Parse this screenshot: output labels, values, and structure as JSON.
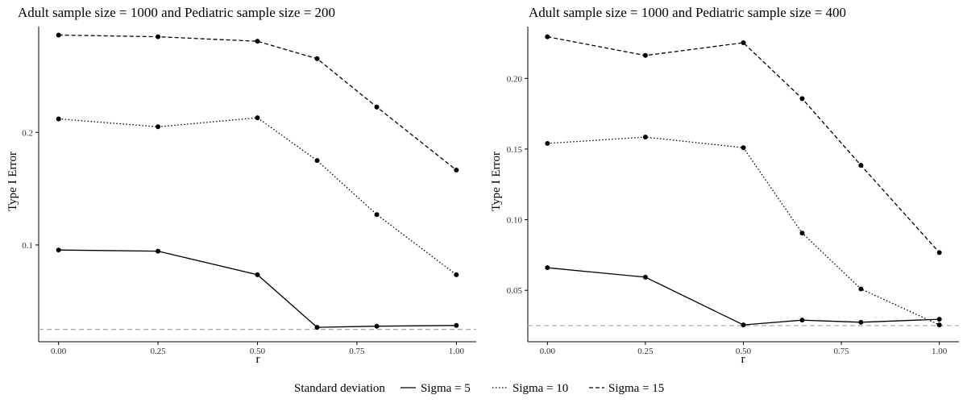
{
  "chart_data": [
    {
      "type": "line",
      "title": "Adult sample size = 1000 and Pediatric sample size = 200",
      "xlabel": "r",
      "ylabel": "Type I Error",
      "x": [
        0.0,
        0.25,
        0.5,
        0.65,
        0.8,
        1.0
      ],
      "xticks": [
        "0.00",
        "0.25",
        "0.50",
        "0.75",
        "1.00"
      ],
      "xtick_values": [
        0.0,
        0.25,
        0.5,
        0.75,
        1.0
      ],
      "yticks": [
        "0.1",
        "0.2"
      ],
      "ytick_values": [
        0.1,
        0.2
      ],
      "xlim": [
        -0.05,
        1.05
      ],
      "ylim": [
        0.014,
        0.294
      ],
      "reference_line": 0.025,
      "series": [
        {
          "name": "Sigma = 5",
          "dash": "solid",
          "values": [
            0.0955,
            0.0945,
            0.0735,
            0.0268,
            0.0278,
            0.0285
          ]
        },
        {
          "name": "Sigma = 10",
          "dash": "dotted",
          "values": [
            0.212,
            0.205,
            0.213,
            0.175,
            0.127,
            0.0735
          ]
        },
        {
          "name": "Sigma = 15",
          "dash": "dashed",
          "values": [
            0.2865,
            0.285,
            0.281,
            0.2655,
            0.2225,
            0.1665
          ]
        }
      ]
    },
    {
      "type": "line",
      "title": "Adult sample size = 1000 and Pediatric sample size = 400",
      "xlabel": "r",
      "ylabel": "Type I Error",
      "x": [
        0.0,
        0.25,
        0.5,
        0.65,
        0.8,
        1.0
      ],
      "xticks": [
        "0.00",
        "0.25",
        "0.50",
        "0.75",
        "1.00"
      ],
      "xtick_values": [
        0.0,
        0.25,
        0.5,
        0.75,
        1.0
      ],
      "yticks": [
        "0.05",
        "0.10",
        "0.15",
        "0.20"
      ],
      "ytick_values": [
        0.05,
        0.1,
        0.15,
        0.2
      ],
      "xlim": [
        -0.05,
        1.05
      ],
      "ylim": [
        0.0136,
        0.2367
      ],
      "reference_line": 0.025,
      "series": [
        {
          "name": "Sigma = 5",
          "dash": "solid",
          "values": [
            0.066,
            0.0593,
            0.0255,
            0.0289,
            0.0274,
            0.0295
          ]
        },
        {
          "name": "Sigma = 10",
          "dash": "dotted",
          "values": [
            0.154,
            0.1585,
            0.151,
            0.0905,
            0.051,
            0.0255
          ]
        },
        {
          "name": "Sigma = 15",
          "dash": "dashed",
          "values": [
            0.2295,
            0.2163,
            0.2253,
            0.1857,
            0.1385,
            0.0767
          ]
        }
      ]
    }
  ],
  "legend": {
    "title": "Standard deviation",
    "position": "bottom",
    "items": [
      {
        "label": "Sigma = 5",
        "dash": "solid"
      },
      {
        "label": "Sigma = 10",
        "dash": "dotted"
      },
      {
        "label": "Sigma = 15",
        "dash": "dashed"
      }
    ]
  },
  "colors": {
    "lines": "#000000",
    "reference_line": "#aaaaaa",
    "axis": "#000000",
    "tick_text": "#333333"
  }
}
